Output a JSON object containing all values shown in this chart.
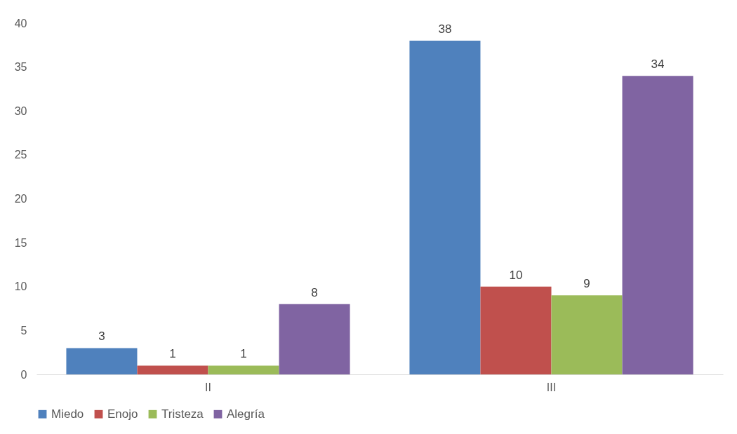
{
  "chart_data": {
    "type": "bar",
    "categories": [
      "II",
      "III"
    ],
    "series": [
      {
        "name": "Miedo",
        "color": "#4f81bd",
        "values": [
          3,
          38
        ]
      },
      {
        "name": "Enojo",
        "color": "#c0504d",
        "values": [
          1,
          10
        ]
      },
      {
        "name": "Tristeza",
        "color": "#9bbb59",
        "values": [
          1,
          9
        ]
      },
      {
        "name": "Alegría",
        "color": "#8064a2",
        "values": [
          8,
          34
        ]
      }
    ],
    "ylim": [
      0,
      40
    ],
    "yticks": [
      0,
      5,
      10,
      15,
      20,
      25,
      30,
      35,
      40
    ],
    "grid": false,
    "legend": "bottom",
    "data_labels": true
  }
}
